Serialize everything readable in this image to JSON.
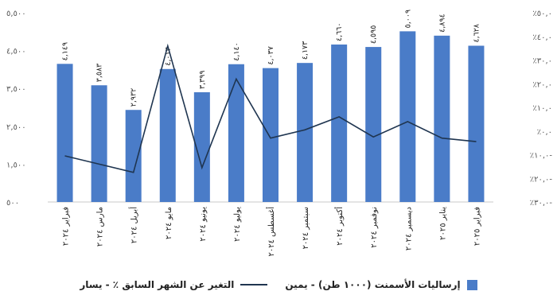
{
  "chart_data": {
    "type": "bar",
    "categories": [
      "فبراير ٢٠٢٤",
      "مارس ٢٠٢٤",
      "أبريل ٢٠٢٤",
      "مايو ٢٠٢٤",
      "يونيو ٢٠٢٤",
      "يوليو ٢٠٢٤",
      "أغسطس ٢٠٢٤",
      "سبتمبر ٢٠٢٤",
      "أكتوبر ٢٠٢٤",
      "نوفمبر ٢٠٢٤",
      "ديسمبر ٢٠٢٤",
      "يناير ٢٠٢٥",
      "فبراير ٢٠٢٥"
    ],
    "series": [
      {
        "name": "إرساليات الأسمنت (١٠٠٠ طن) - يمين",
        "type": "bar",
        "axis": "left",
        "color": "#4a7cc8",
        "values": [
          4149,
          3583,
          2932,
          4013,
          3399,
          4140,
          4037,
          4173,
          4660,
          4595,
          5009,
          4894,
          4628
        ],
        "labels": [
          "٤,١٤٩",
          "٣,٥٨٣",
          "٢,٩٣٢",
          "٤,٠١٣",
          "٣,٣٩٩",
          "٤,١٤٠",
          "٤,٠٣٧",
          "٤,١٧٣",
          "٤,٦٦٠",
          "٤,٥٩٥",
          "٥,٠٠٩",
          "٤,٨٩٤",
          "٤,٦٢٨"
        ]
      },
      {
        "name": "التغير عن الشهر السابق ٪ - يسار",
        "type": "line",
        "axis": "right",
        "color": "#1f3550",
        "values": [
          -10.5,
          -14.0,
          -17.5,
          36.0,
          -15.5,
          22.0,
          -3.0,
          0.5,
          6.0,
          -2.5,
          4.0,
          -3.0,
          -4.5
        ]
      }
    ],
    "y_left": {
      "range": [
        500,
        5500
      ],
      "ticks": [
        500,
        1500,
        2500,
        3500,
        4500,
        5500
      ],
      "tick_labels": [
        "٥٠٠",
        "١,٥٠٠",
        "٢,٥٠٠",
        "٣,٥٠٠",
        "٤,٥٠٠",
        "٥,٥٠٠"
      ]
    },
    "y_right": {
      "range": [
        -30,
        50
      ],
      "ticks": [
        -30,
        -20,
        -10,
        0,
        10,
        20,
        30,
        40,
        50
      ],
      "tick_labels": [
        "٪٣٠,٠-",
        "٪٢٠,٠-",
        "٪١٠,٠-",
        "٪٠,٠",
        "٪١٠,٠",
        "٪٢٠,٠",
        "٪٣٠,٠",
        "٪٤٠,٠",
        "٪٥٠,٠"
      ]
    },
    "grid": false,
    "legend_position": "bottom"
  }
}
